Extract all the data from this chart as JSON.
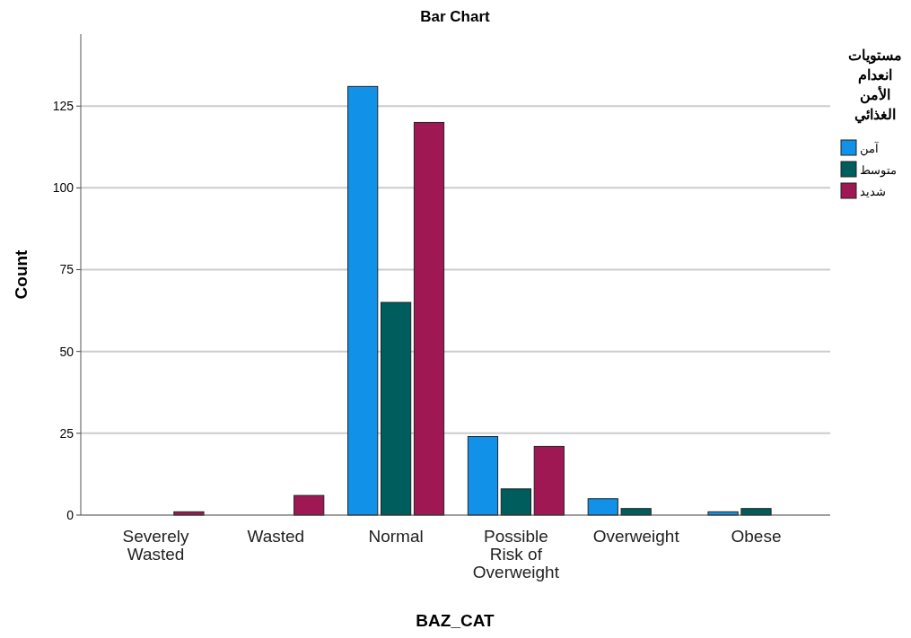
{
  "chart_data": {
    "type": "bar",
    "title": "Bar Chart",
    "xlabel": "BAZ_CAT",
    "ylabel": "Count",
    "legend_title": "مستويات انعدام الأمن الغذائي",
    "categories": [
      "Severely Wasted",
      "Wasted",
      "Normal",
      "Possible Risk of Overweight",
      "Overweight",
      "Obese"
    ],
    "series": [
      {
        "name": "آمن",
        "color": "#1192e8",
        "values": [
          0,
          0,
          131,
          24,
          5,
          1
        ]
      },
      {
        "name": "متوسط",
        "color": "#005d5d",
        "values": [
          0,
          0,
          65,
          8,
          2,
          2
        ]
      },
      {
        "name": "شديد",
        "color": "#9f1853",
        "values": [
          1,
          6,
          120,
          21,
          0,
          0
        ]
      }
    ],
    "ylim": [
      0,
      147
    ],
    "yticks": [
      0,
      25,
      50,
      75,
      100,
      125
    ],
    "grid": "y",
    "legend": "right"
  }
}
